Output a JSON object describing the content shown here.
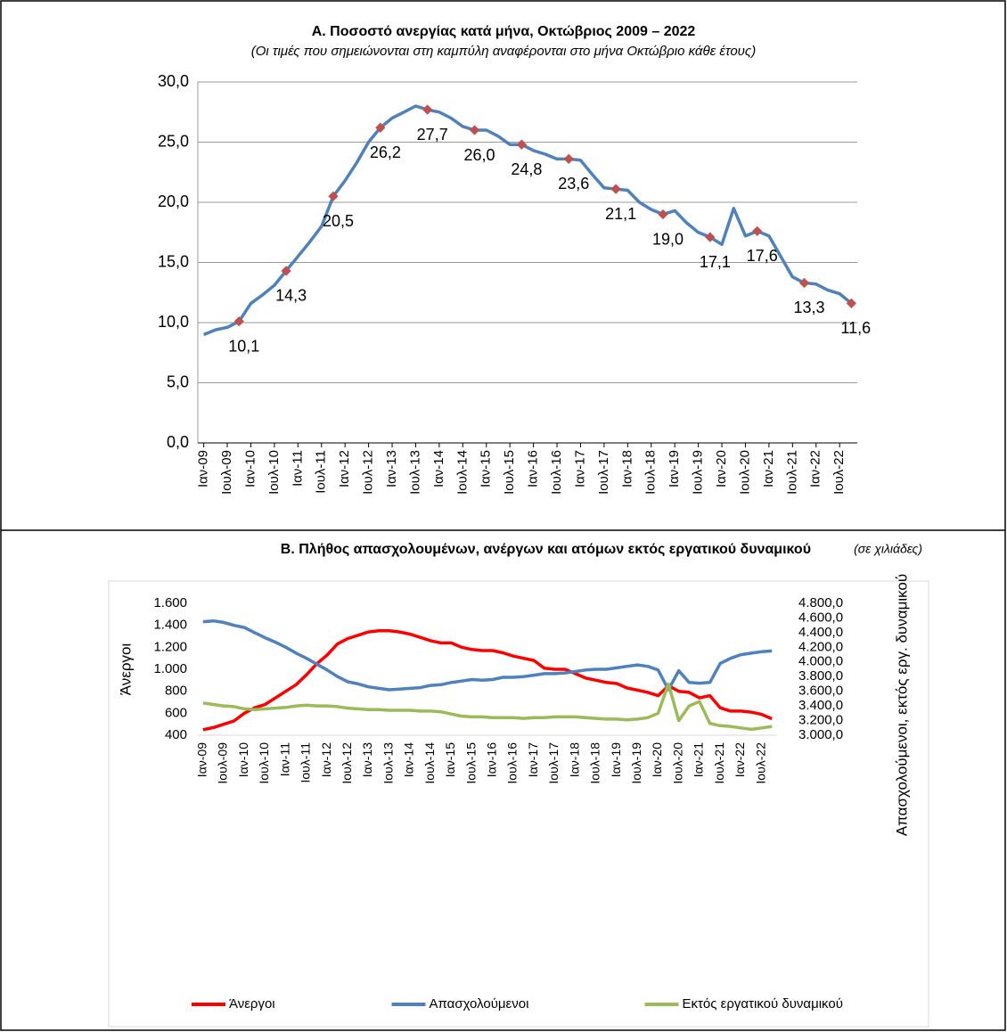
{
  "chart_data": [
    {
      "type": "line",
      "title": "Α. Ποσοστό ανεργίας κατά μήνα, Οκτώβριος 2009 – 2022",
      "subtitle": "(Οι τιμές που σημειώνονται στη καμπύλη αναφέρονται στο μήνα Οκτώβριο κάθε έτους)",
      "categories": [
        "Ιαν-09",
        null,
        "Ιουλ-09",
        null,
        "Ιαν-10",
        null,
        "Ιουλ-10",
        null,
        "Ιαν-11",
        null,
        "Ιουλ-11",
        null,
        "Ιαν-12",
        null,
        "Ιουλ-12",
        null,
        "Ιαν-13",
        null,
        "Ιουλ-13",
        null,
        "Ιαν-14",
        null,
        "Ιουλ-14",
        null,
        "Ιαν-15",
        null,
        "Ιουλ-15",
        null,
        "Ιαν-16",
        null,
        "Ιουλ-16",
        null,
        "Ιαν-17",
        null,
        "Ιουλ-17",
        null,
        "Ιαν-18",
        null,
        "Ιουλ-18",
        null,
        "Ιαν-19",
        null,
        "Ιουλ-19",
        null,
        "Ιαν-20",
        null,
        "Ιουλ-20",
        null,
        "Ιαν-21",
        null,
        "Ιουλ-21",
        null,
        "Ιαν-22",
        null,
        "Ιουλ-22",
        null
      ],
      "series": [
        {
          "color": "#4f81bd",
          "marker_color": "#c0504d",
          "values": [
            9.0,
            9.4,
            9.6,
            10.1,
            11.6,
            12.3,
            13.1,
            14.3,
            15.5,
            16.7,
            18.0,
            20.5,
            21.8,
            23.3,
            25.0,
            26.2,
            27.0,
            27.5,
            28.0,
            27.7,
            27.5,
            27.0,
            26.3,
            26.0,
            26.0,
            25.5,
            24.8,
            24.8,
            24.3,
            24.0,
            23.6,
            23.6,
            23.5,
            22.3,
            21.2,
            21.1,
            21.0,
            20.0,
            19.4,
            19.0,
            19.3,
            18.3,
            17.5,
            17.1,
            16.5,
            19.5,
            17.2,
            17.6,
            17.2,
            15.5,
            13.8,
            13.3,
            13.2,
            12.7,
            12.4,
            11.6
          ],
          "value_labels": [
            null,
            null,
            null,
            "10,1",
            null,
            null,
            null,
            "14,3",
            null,
            null,
            null,
            "20,5",
            null,
            null,
            null,
            "26,2",
            null,
            null,
            null,
            "27,7",
            null,
            null,
            null,
            "26,0",
            null,
            null,
            null,
            "24,8",
            null,
            null,
            null,
            "23,6",
            null,
            null,
            null,
            "21,1",
            null,
            null,
            null,
            "19,0",
            null,
            null,
            null,
            "17,1",
            null,
            null,
            null,
            "17,6",
            null,
            null,
            null,
            "13,3",
            null,
            null,
            null,
            "11,6"
          ]
        }
      ],
      "ylim": [
        0,
        30
      ],
      "yticks": [
        {
          "value": 0,
          "label": "0,0"
        },
        {
          "value": 5,
          "label": "5,0"
        },
        {
          "value": 10,
          "label": "10,0"
        },
        {
          "value": 15,
          "label": "15,0"
        },
        {
          "value": 20,
          "label": "20,0"
        },
        {
          "value": 25,
          "label": "25,0"
        },
        {
          "value": 30,
          "label": "30,0"
        }
      ],
      "grid": true
    },
    {
      "type": "line",
      "title": "Β. Πλήθος απασχολουμένων, ανέργων και ατόμων εκτός εργατικού δυναμικού",
      "subtitle": "(σε χιλιάδες)",
      "y_label": "Άνεργοι",
      "y2_label": "Απασχολούμενοι, εκτός εργ. δυναμικού",
      "categories": [
        "Ιαν-09",
        null,
        "Ιουλ-09",
        null,
        "Ιαν-10",
        null,
        "Ιουλ-10",
        null,
        "Ιαν-11",
        null,
        "Ιουλ-11",
        null,
        "Ιαν-12",
        null,
        "Ιουλ-12",
        null,
        "Ιαν-13",
        null,
        "Ιουλ-13",
        null,
        "Ιαν-14",
        null,
        "Ιουλ-14",
        null,
        "Ιαν-15",
        null,
        "Ιουλ-15",
        null,
        "Ιαν-16",
        null,
        "Ιουλ-16",
        null,
        "Ιαν-17",
        null,
        "Ιουλ-17",
        null,
        "Ιαν-18",
        null,
        "Ιουλ-18",
        null,
        "Ιαν-19",
        null,
        "Ιουλ-19",
        null,
        "Ιαν-20",
        null,
        "Ιουλ-20",
        null,
        "Ιαν-21",
        null,
        "Ιουλ-21",
        null,
        "Ιαν-22",
        null,
        "Ιουλ-22",
        null
      ],
      "series": [
        {
          "name": "Άνεργοι",
          "color": "#ff0000",
          "values": [
            450,
            470,
            500,
            530,
            600,
            650,
            680,
            740,
            800,
            860,
            950,
            1050,
            1130,
            1230,
            1280,
            1310,
            1340,
            1350,
            1350,
            1340,
            1320,
            1290,
            1260,
            1240,
            1240,
            1200,
            1180,
            1170,
            1170,
            1150,
            1120,
            1100,
            1080,
            1010,
            1000,
            1000,
            960,
            920,
            900,
            880,
            870,
            830,
            810,
            790,
            760,
            850,
            800,
            790,
            740,
            760,
            650,
            620,
            620,
            610,
            590,
            550
          ]
        },
        {
          "name": "Απασχολούμενοι",
          "color": "#4f81bd",
          "axis": "y2",
          "values": [
            4550,
            4560,
            4540,
            4500,
            4470,
            4400,
            4330,
            4270,
            4200,
            4120,
            4050,
            3970,
            3890,
            3800,
            3730,
            3700,
            3660,
            3640,
            3620,
            3630,
            3640,
            3650,
            3680,
            3690,
            3720,
            3740,
            3760,
            3750,
            3760,
            3790,
            3790,
            3800,
            3820,
            3840,
            3840,
            3850,
            3870,
            3890,
            3900,
            3900,
            3920,
            3940,
            3960,
            3940,
            3890,
            3620,
            3880,
            3720,
            3710,
            3720,
            3980,
            4050,
            4100,
            4120,
            4140,
            4150
          ]
        },
        {
          "name": "Εκτός εργατικού δυναμικού",
          "color": "#9bbb59",
          "axis": "y2",
          "values": [
            3440,
            3420,
            3400,
            3390,
            3360,
            3350,
            3360,
            3370,
            3380,
            3400,
            3410,
            3400,
            3400,
            3390,
            3370,
            3360,
            3350,
            3350,
            3340,
            3340,
            3340,
            3330,
            3330,
            3320,
            3290,
            3260,
            3250,
            3250,
            3240,
            3240,
            3240,
            3230,
            3240,
            3240,
            3250,
            3250,
            3250,
            3240,
            3230,
            3220,
            3220,
            3210,
            3220,
            3240,
            3300,
            3700,
            3200,
            3400,
            3460,
            3160,
            3130,
            3120,
            3100,
            3080,
            3100,
            3120
          ]
        }
      ],
      "ylim": [
        400,
        1600
      ],
      "yticks": [
        400,
        600,
        800,
        {
          "value": 1000,
          "label": "1.000"
        },
        {
          "value": 1200,
          "label": "1.200"
        },
        {
          "value": 1400,
          "label": "1.400"
        },
        {
          "value": 1600,
          "label": "1.600"
        }
      ],
      "y2lim": [
        3000,
        4800
      ],
      "y2ticks": [
        {
          "value": 3000,
          "label": "3.000,0"
        },
        {
          "value": 3200,
          "label": "3.200,0"
        },
        {
          "value": 3400,
          "label": "3.400,0"
        },
        {
          "value": 3600,
          "label": "3.600,0"
        },
        {
          "value": 3800,
          "label": "3.800,0"
        },
        {
          "value": 4000,
          "label": "4.000,0"
        },
        {
          "value": 4200,
          "label": "4.200,0"
        },
        {
          "value": 4400,
          "label": "4.400,0"
        },
        {
          "value": 4600,
          "label": "4.600,0"
        },
        {
          "value": 4800,
          "label": "4.800,0"
        }
      ],
      "grid": false,
      "legend": "bottom"
    }
  ]
}
